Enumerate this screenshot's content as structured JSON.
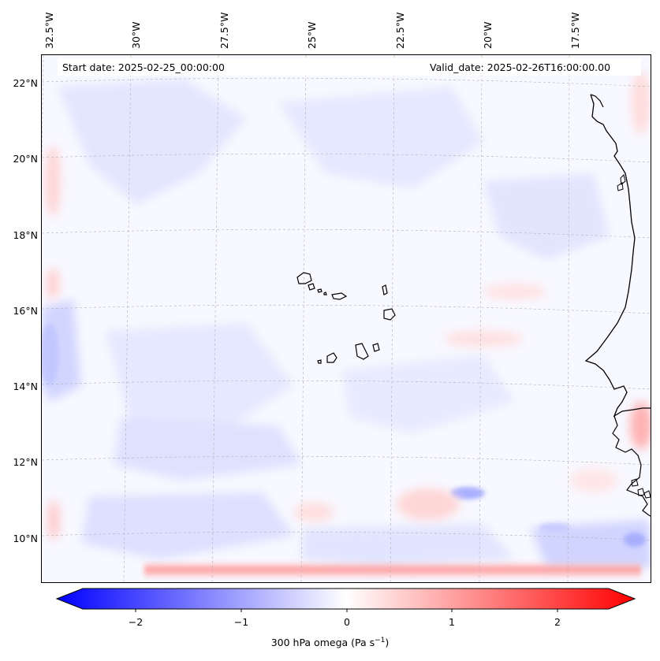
{
  "header": {
    "start_date": "Start date: 2025-02-25_00:00:00",
    "valid_date": "Valid_date: 2025-02-26T16:00:00.00"
  },
  "axes": {
    "lon_labels": [
      "32.5°W",
      "30°W",
      "27.5°W",
      "25°W",
      "22.5°W",
      "20°W",
      "17.5°W"
    ],
    "lat_labels": [
      "22°N",
      "20°N",
      "18°N",
      "16°N",
      "14°N",
      "12°N",
      "10°N"
    ]
  },
  "colorbar": {
    "ticks": [
      "−2",
      "−1",
      "0",
      "1",
      "2"
    ],
    "label": "300 hPa omega (Pa s",
    "label_sup": "−1",
    "label_end": ")",
    "min": -2.7,
    "max": 2.7,
    "colors": {
      "negative": "#0000ff",
      "neutral": "#ffffff",
      "positive": "#ff0000"
    }
  },
  "map": {
    "field": "300 hPa omega",
    "projection": "conic",
    "gridlines": true,
    "coastline_color": "#000000"
  }
}
